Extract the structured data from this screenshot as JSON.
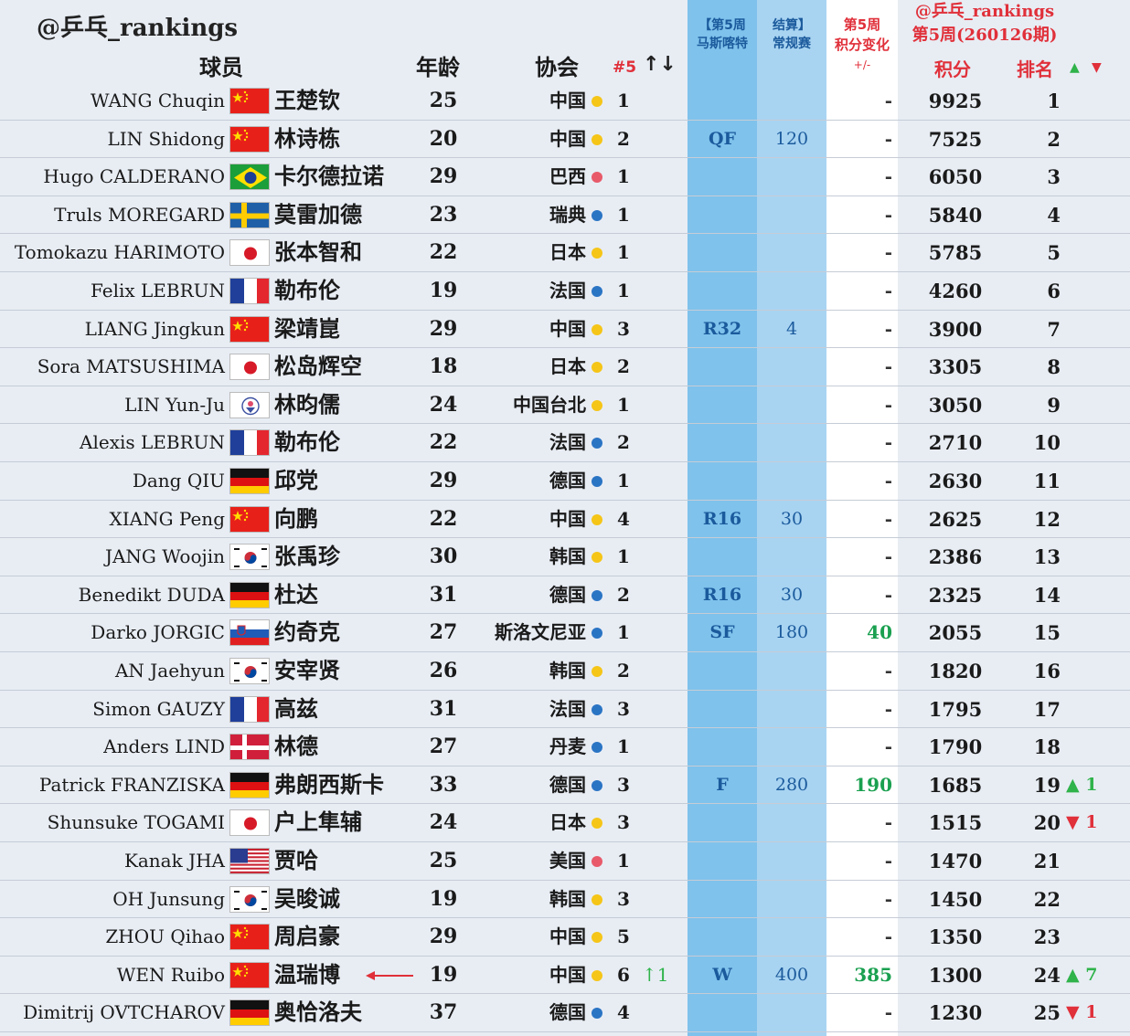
{
  "header": {
    "brand": "@乒乓_rankings",
    "col_name": "球员",
    "col_age": "年龄",
    "col_assoc": "协会",
    "col_pos": "#5",
    "col_sort": "↑↓",
    "col_result_l1": "【第5周",
    "col_result_l2": "马斯喀特",
    "col_points_l1": "结算】",
    "col_points_l2": "常规赛",
    "col_change_l1": "第5周",
    "col_change_l2": "积分变化",
    "col_change_l3": "+/-",
    "brand2_l1": "@乒乓_rankings",
    "brand2_l2": "第5周(260126期)",
    "col_total": "积分",
    "col_rank": "排名",
    "up_icon": "▲",
    "down_icon": "▼"
  },
  "colors": {
    "dot_yellow": "#f5c518",
    "dot_blue": "#2a74c4",
    "dot_red": "#e85a6a",
    "up": "#2fb34a",
    "down": "#e0303a"
  },
  "players": [
    {
      "name": "WANG Chuqin",
      "cn": "王楚钦",
      "flag": "china",
      "age": "25",
      "assoc": "中国",
      "dot": "yellow",
      "pos": "1",
      "move": "",
      "result": "",
      "pts": "",
      "change": "-",
      "total": "9925",
      "rank": "1",
      "rmove": "",
      "rdir": ""
    },
    {
      "name": "LIN Shidong",
      "cn": "林诗栋",
      "flag": "china",
      "age": "20",
      "assoc": "中国",
      "dot": "yellow",
      "pos": "2",
      "move": "",
      "result": "QF",
      "pts": "120",
      "change": "-",
      "total": "7525",
      "rank": "2",
      "rmove": "",
      "rdir": ""
    },
    {
      "name": "Hugo CALDERANO",
      "cn": "卡尔德拉诺",
      "flag": "brazil",
      "age": "29",
      "assoc": "巴西",
      "dot": "red",
      "pos": "1",
      "move": "",
      "result": "",
      "pts": "",
      "change": "-",
      "total": "6050",
      "rank": "3",
      "rmove": "",
      "rdir": ""
    },
    {
      "name": "Truls MOREGARD",
      "cn": "莫雷加德",
      "flag": "sweden",
      "age": "23",
      "assoc": "瑞典",
      "dot": "blue",
      "pos": "1",
      "move": "",
      "result": "",
      "pts": "",
      "change": "-",
      "total": "5840",
      "rank": "4",
      "rmove": "",
      "rdir": ""
    },
    {
      "name": "Tomokazu HARIMOTO",
      "cn": "张本智和",
      "flag": "japan",
      "age": "22",
      "assoc": "日本",
      "dot": "yellow",
      "pos": "1",
      "move": "",
      "result": "",
      "pts": "",
      "change": "-",
      "total": "5785",
      "rank": "5",
      "rmove": "",
      "rdir": ""
    },
    {
      "name": "Felix LEBRUN",
      "cn": "勒布伦",
      "flag": "france",
      "age": "19",
      "assoc": "法国",
      "dot": "blue",
      "pos": "1",
      "move": "",
      "result": "",
      "pts": "",
      "change": "-",
      "total": "4260",
      "rank": "6",
      "rmove": "",
      "rdir": ""
    },
    {
      "name": "LIANG Jingkun",
      "cn": "梁靖崑",
      "flag": "china",
      "age": "29",
      "assoc": "中国",
      "dot": "yellow",
      "pos": "3",
      "move": "",
      "result": "R32",
      "pts": "4",
      "change": "-",
      "total": "3900",
      "rank": "7",
      "rmove": "",
      "rdir": ""
    },
    {
      "name": "Sora MATSUSHIMA",
      "cn": "松岛辉空",
      "flag": "japan",
      "age": "18",
      "assoc": "日本",
      "dot": "yellow",
      "pos": "2",
      "move": "",
      "result": "",
      "pts": "",
      "change": "-",
      "total": "3305",
      "rank": "8",
      "rmove": "",
      "rdir": ""
    },
    {
      "name": "LIN Yun-Ju",
      "cn": "林昀儒",
      "flag": "tpe",
      "age": "24",
      "assoc": "中国台北",
      "dot": "yellow",
      "pos": "1",
      "move": "",
      "result": "",
      "pts": "",
      "change": "-",
      "total": "3050",
      "rank": "9",
      "rmove": "",
      "rdir": ""
    },
    {
      "name": "Alexis LEBRUN",
      "cn": "勒布伦",
      "flag": "france",
      "age": "22",
      "assoc": "法国",
      "dot": "blue",
      "pos": "2",
      "move": "",
      "result": "",
      "pts": "",
      "change": "-",
      "total": "2710",
      "rank": "10",
      "rmove": "",
      "rdir": ""
    },
    {
      "name": "Dang QIU",
      "cn": "邱党",
      "flag": "germany",
      "age": "29",
      "assoc": "德国",
      "dot": "blue",
      "pos": "1",
      "move": "",
      "result": "",
      "pts": "",
      "change": "-",
      "total": "2630",
      "rank": "11",
      "rmove": "",
      "rdir": ""
    },
    {
      "name": "XIANG Peng",
      "cn": "向鹏",
      "flag": "china",
      "age": "22",
      "assoc": "中国",
      "dot": "yellow",
      "pos": "4",
      "move": "",
      "result": "R16",
      "pts": "30",
      "change": "-",
      "total": "2625",
      "rank": "12",
      "rmove": "",
      "rdir": ""
    },
    {
      "name": "JANG Woojin",
      "cn": "张禹珍",
      "flag": "korea",
      "age": "30",
      "assoc": "韩国",
      "dot": "yellow",
      "pos": "1",
      "move": "",
      "result": "",
      "pts": "",
      "change": "-",
      "total": "2386",
      "rank": "13",
      "rmove": "",
      "rdir": ""
    },
    {
      "name": "Benedikt DUDA",
      "cn": "杜达",
      "flag": "germany",
      "age": "31",
      "assoc": "德国",
      "dot": "blue",
      "pos": "2",
      "move": "",
      "result": "R16",
      "pts": "30",
      "change": "-",
      "total": "2325",
      "rank": "14",
      "rmove": "",
      "rdir": ""
    },
    {
      "name": "Darko JORGIC",
      "cn": "约奇克",
      "flag": "slovenia",
      "age": "27",
      "assoc": "斯洛文尼亚",
      "dot": "blue",
      "pos": "1",
      "move": "",
      "result": "SF",
      "pts": "180",
      "change": "40",
      "total": "2055",
      "rank": "15",
      "rmove": "",
      "rdir": ""
    },
    {
      "name": "AN Jaehyun",
      "cn": "安宰贤",
      "flag": "korea",
      "age": "26",
      "assoc": "韩国",
      "dot": "yellow",
      "pos": "2",
      "move": "",
      "result": "",
      "pts": "",
      "change": "-",
      "total": "1820",
      "rank": "16",
      "rmove": "",
      "rdir": ""
    },
    {
      "name": "Simon GAUZY",
      "cn": "高兹",
      "flag": "france",
      "age": "31",
      "assoc": "法国",
      "dot": "blue",
      "pos": "3",
      "move": "",
      "result": "",
      "pts": "",
      "change": "-",
      "total": "1795",
      "rank": "17",
      "rmove": "",
      "rdir": ""
    },
    {
      "name": "Anders LIND",
      "cn": "林德",
      "flag": "denmark",
      "age": "27",
      "assoc": "丹麦",
      "dot": "blue",
      "pos": "1",
      "move": "",
      "result": "",
      "pts": "",
      "change": "-",
      "total": "1790",
      "rank": "18",
      "rmove": "",
      "rdir": ""
    },
    {
      "name": "Patrick FRANZISKA",
      "cn": "弗朗西斯卡",
      "flag": "germany",
      "age": "33",
      "assoc": "德国",
      "dot": "blue",
      "pos": "3",
      "move": "",
      "result": "F",
      "pts": "280",
      "change": "190",
      "total": "1685",
      "rank": "19",
      "rmove": "▲ 1",
      "rdir": "up"
    },
    {
      "name": "Shunsuke TOGAMI",
      "cn": "户上隼辅",
      "flag": "japan",
      "age": "24",
      "assoc": "日本",
      "dot": "yellow",
      "pos": "3",
      "move": "",
      "result": "",
      "pts": "",
      "change": "-",
      "total": "1515",
      "rank": "20",
      "rmove": "▼ 1",
      "rdir": "down"
    },
    {
      "name": "Kanak JHA",
      "cn": "贾哈",
      "flag": "usa",
      "age": "25",
      "assoc": "美国",
      "dot": "red",
      "pos": "1",
      "move": "",
      "result": "",
      "pts": "",
      "change": "-",
      "total": "1470",
      "rank": "21",
      "rmove": "",
      "rdir": ""
    },
    {
      "name": "OH Junsung",
      "cn": "吴晙诚",
      "flag": "korea",
      "age": "19",
      "assoc": "韩国",
      "dot": "yellow",
      "pos": "3",
      "move": "",
      "result": "",
      "pts": "",
      "change": "-",
      "total": "1450",
      "rank": "22",
      "rmove": "",
      "rdir": ""
    },
    {
      "name": "ZHOU Qihao",
      "cn": "周启豪",
      "flag": "china",
      "age": "29",
      "assoc": "中国",
      "dot": "yellow",
      "pos": "5",
      "move": "",
      "result": "",
      "pts": "",
      "change": "-",
      "total": "1350",
      "rank": "23",
      "rmove": "",
      "rdir": ""
    },
    {
      "name": "WEN Ruibo",
      "cn": "温瑞博",
      "flag": "china",
      "age": "19",
      "assoc": "中国",
      "dot": "yellow",
      "pos": "6",
      "move": "↑1",
      "result": "W",
      "pts": "400",
      "change": "385",
      "total": "1300",
      "rank": "24",
      "rmove": "▲ 7",
      "rdir": "up",
      "highlight": true
    },
    {
      "name": "Dimitrij OVTCHAROV",
      "cn": "奥恰洛夫",
      "flag": "germany",
      "age": "37",
      "assoc": "德国",
      "dot": "blue",
      "pos": "4",
      "move": "",
      "result": "",
      "pts": "",
      "change": "-",
      "total": "1230",
      "rank": "25",
      "rmove": "▼ 1",
      "rdir": "down"
    }
  ]
}
